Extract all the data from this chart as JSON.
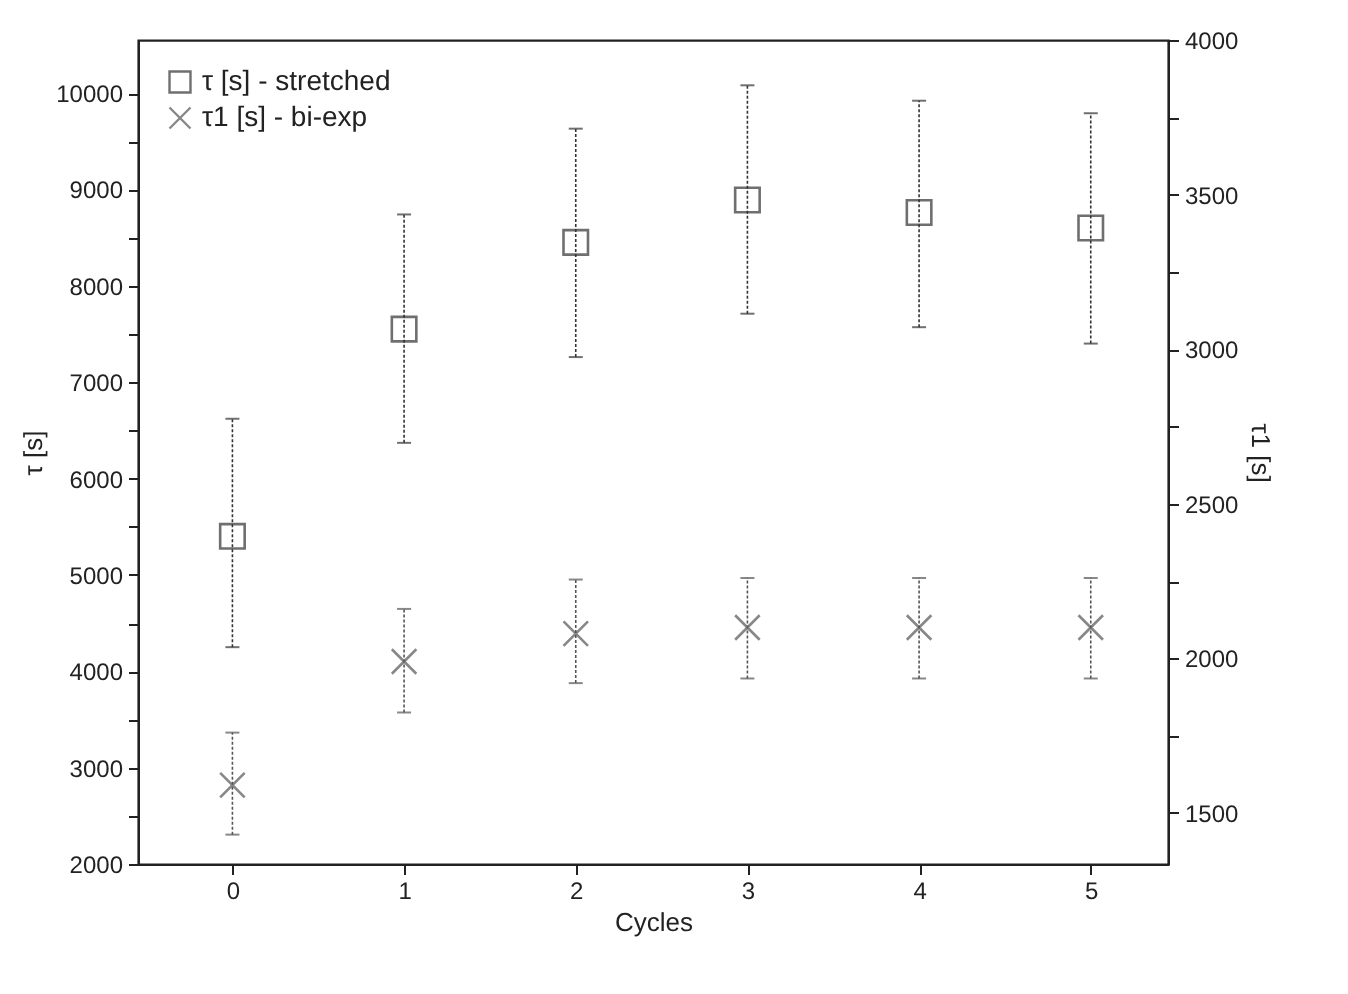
{
  "chart_data": {
    "type": "scatter",
    "xlabel": "Cycles",
    "ylabel": "τ [s]",
    "y2label": "τ1 [s]",
    "x": [
      0,
      1,
      2,
      3,
      4,
      5
    ],
    "xlim": [
      -0.55,
      5.45
    ],
    "xticks": [
      0,
      1,
      2,
      3,
      4,
      5
    ],
    "ylim": [
      2000,
      10550
    ],
    "yticks": [
      2000,
      {
        "value": 2500,
        "label": null
      },
      3000,
      {
        "value": 3500,
        "label": null
      },
      4000,
      {
        "value": 4500,
        "label": null
      },
      5000,
      {
        "value": 5500,
        "label": null
      },
      6000,
      {
        "value": 6500,
        "label": null
      },
      7000,
      {
        "value": 7500,
        "label": null
      },
      8000,
      {
        "value": 8500,
        "label": null
      },
      9000,
      {
        "value": 9500,
        "label": null
      },
      10000
    ],
    "y2lim": [
      1335,
      4000
    ],
    "y2ticks": [
      1500,
      {
        "value": 1750,
        "label": null
      },
      2000,
      {
        "value": 2250,
        "label": null
      },
      2500,
      {
        "value": 2750,
        "label": null
      },
      3000,
      {
        "value": 3250,
        "label": null
      },
      3500,
      {
        "value": 3750,
        "label": null
      },
      4000
    ],
    "grid": false,
    "legend": "top left",
    "series": [
      {
        "name": "τ [s] - stretched",
        "color": "#333333",
        "marker": "square",
        "values": [
          5400,
          7550,
          8450,
          8890,
          8760,
          8600
        ],
        "errors": [
          [
            4250,
            6620
          ],
          [
            6370,
            8740
          ],
          [
            7260,
            9630
          ],
          [
            7710,
            10080
          ],
          [
            7570,
            9920
          ],
          [
            7400,
            9790
          ]
        ]
      },
      {
        "name": "τ1 [s] - bi-exp",
        "color": "#555555",
        "marker": "cross",
        "axis": "y2",
        "values": [
          1590,
          1990,
          2080,
          2100,
          2100,
          2100
        ],
        "errors": [
          [
            1430,
            1760
          ],
          [
            1825,
            2160
          ],
          [
            1920,
            2255
          ],
          [
            1935,
            2260
          ],
          [
            1935,
            2260
          ],
          [
            1935,
            2260
          ]
        ]
      }
    ]
  }
}
